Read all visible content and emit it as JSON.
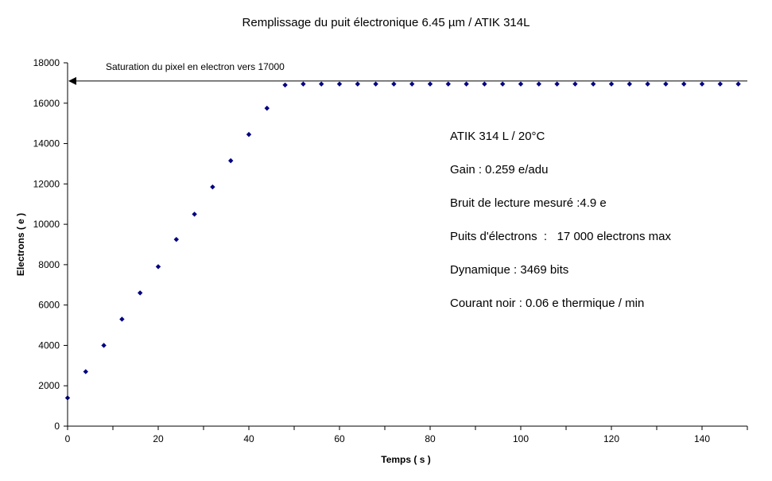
{
  "chart_data": {
    "type": "scatter",
    "title": "Remplissage du puit électronique 6.45 µm / ATIK 314L",
    "xlabel": "Temps ( s )",
    "ylabel": "Electrons ( e )",
    "xlim": [
      0,
      150
    ],
    "ylim": [
      0,
      18000
    ],
    "xticks": [
      "0",
      "20",
      "40",
      "60",
      "80",
      "100",
      "120",
      "140"
    ],
    "yticks": [
      "0",
      "2000",
      "4000",
      "6000",
      "8000",
      "10000",
      "12000",
      "14000",
      "16000",
      "18000"
    ],
    "grid": false,
    "marker_color": "#000080",
    "series": [
      {
        "x": [
          0,
          4,
          8,
          12,
          16,
          20,
          24,
          28,
          32,
          36,
          40,
          44,
          48,
          52,
          56,
          60,
          64,
          68,
          72,
          76,
          80,
          84,
          88,
          92,
          96,
          100,
          104,
          108,
          112,
          116,
          120,
          124,
          128,
          132,
          136,
          140,
          144,
          148
        ],
        "y": [
          1400,
          2700,
          4000,
          5300,
          6600,
          7900,
          9250,
          10500,
          11850,
          13150,
          14450,
          15750,
          16900,
          16950,
          16950,
          16950,
          16950,
          16950,
          16950,
          16950,
          16950,
          16950,
          16950,
          16950,
          16950,
          16950,
          16950,
          16950,
          16950,
          16950,
          16950,
          16950,
          16950,
          16950,
          16950,
          16950,
          16950,
          16950
        ]
      }
    ],
    "annotations": {
      "saturation_label": "Saturation du pixel en electron vers 17000",
      "saturation_value": 17100,
      "arrow_x_start": 150,
      "arrow_x_end": 0
    },
    "info_lines": [
      "ATIK 314 L / 20°C",
      "Gain : 0.259 e/adu",
      "Bruit de lecture mesuré :4.9 e",
      "Puits d'électrons  :   17 000 electrons max",
      "Dynamique : 3469 bits",
      "Courant noir : 0.06 e thermique / min"
    ]
  }
}
